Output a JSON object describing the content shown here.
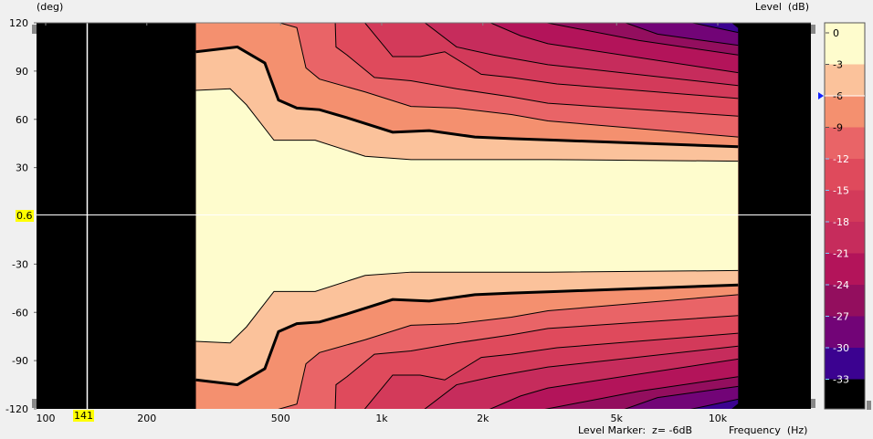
{
  "header": {
    "y_unit": "(deg)",
    "z_unit": "Level  (dB)"
  },
  "footer": {
    "level_marker": "Level Marker:  z= -6dB",
    "x_unit": "Frequency  (Hz)"
  },
  "markers": {
    "x_marker_label": "141",
    "x_marker_value": 141,
    "y_marker_label": "0.6",
    "y_marker_value": 0.6,
    "level_marker_db": -6
  },
  "chart_data": {
    "type": "heatmap",
    "subtype": "contour",
    "xlabel": "Frequency  (Hz)",
    "ylabel": "(deg)",
    "zlabel": "Level  (dB)",
    "x_scale": "log",
    "xlim": [
      92,
      19000
    ],
    "ylim": [
      -120,
      120
    ],
    "data_x_range": [
      280,
      11500
    ],
    "x_ticks": [
      {
        "v": 100,
        "label": "100"
      },
      {
        "v": 200,
        "label": "200"
      },
      {
        "v": 500,
        "label": "500"
      },
      {
        "v": 1000,
        "label": "1k"
      },
      {
        "v": 2000,
        "label": "2k"
      },
      {
        "v": 5000,
        "label": "5k"
      },
      {
        "v": 10000,
        "label": "10k"
      }
    ],
    "y_ticks": [
      {
        "v": 120,
        "label": "120"
      },
      {
        "v": 90,
        "label": "90"
      },
      {
        "v": 60,
        "label": "60"
      },
      {
        "v": 30,
        "label": "30"
      },
      {
        "v": -30,
        "label": "-30"
      },
      {
        "v": -60,
        "label": "-60"
      },
      {
        "v": -90,
        "label": "-90"
      },
      {
        "v": -120,
        "label": "-120"
      }
    ],
    "colorbar": [
      {
        "level": 0,
        "label": "0",
        "color": "#fefccd",
        "text": "#000000"
      },
      {
        "level": -3,
        "label": "-3",
        "color": "#fbc29b",
        "text": "#000000"
      },
      {
        "level": -6,
        "label": "-6",
        "color": "#f4906f",
        "text": "#000000"
      },
      {
        "level": -9,
        "label": "-9",
        "color": "#e96467",
        "text": "#000000"
      },
      {
        "level": -12,
        "label": "-12",
        "color": "#df4a5c",
        "text": "#ffffff"
      },
      {
        "level": -15,
        "label": "-15",
        "color": "#d33a5a",
        "text": "#ffffff"
      },
      {
        "level": -18,
        "label": "-18",
        "color": "#c62c5c",
        "text": "#ffffff"
      },
      {
        "level": -21,
        "label": "-21",
        "color": "#b3145a",
        "text": "#ffffff"
      },
      {
        "level": -24,
        "label": "-24",
        "color": "#930e5e",
        "text": "#ffffff"
      },
      {
        "level": -27,
        "label": "-27",
        "color": "#720477",
        "text": "#ffffff"
      },
      {
        "level": -30,
        "label": "-30",
        "color": "#3b0290",
        "text": "#ffffff"
      },
      {
        "level": -33,
        "label": "-33",
        "color": "#000000",
        "text": "#ffffff"
      }
    ],
    "contours": [
      {
        "level": -33,
        "points": [
          [
            10900,
            121
          ],
          [
            11500,
            117
          ]
        ]
      },
      {
        "level": -30,
        "points": [
          [
            7980,
            121
          ],
          [
            11500,
            114
          ]
        ]
      },
      {
        "level": -27,
        "points": [
          [
            5153,
            121
          ],
          [
            6620,
            113
          ],
          [
            11500,
            106
          ]
        ]
      },
      {
        "level": -24,
        "points": [
          [
            2931,
            121
          ],
          [
            5837,
            109
          ],
          [
            11500,
            100
          ]
        ]
      },
      {
        "level": -21,
        "points": [
          [
            2055,
            121
          ],
          [
            2588,
            112
          ],
          [
            3124,
            107
          ],
          [
            11500,
            89
          ]
        ]
      },
      {
        "level": -18,
        "points": [
          [
            1326,
            121
          ],
          [
            1670,
            105
          ],
          [
            2146,
            100
          ],
          [
            3124,
            94
          ],
          [
            11500,
            81
          ]
        ]
      },
      {
        "level": -15,
        "points": [
          [
            883,
            121
          ],
          [
            1078,
            99
          ],
          [
            1301,
            99
          ],
          [
            1540,
            102
          ],
          [
            1978,
            88
          ],
          [
            2432,
            86
          ],
          [
            3324,
            82
          ],
          [
            11500,
            73
          ]
        ]
      },
      {
        "level": -12,
        "points": [
          [
            727,
            121
          ],
          [
            731,
            105
          ],
          [
            788,
            100
          ],
          [
            951,
            86
          ],
          [
            1222,
            84
          ],
          [
            1670,
            79
          ],
          [
            2432,
            74
          ],
          [
            3124,
            70
          ],
          [
            11500,
            62
          ]
        ]
      },
      {
        "level": -9,
        "points": [
          [
            478,
            121
          ],
          [
            559,
            117
          ],
          [
            595,
            92
          ],
          [
            653,
            85
          ],
          [
            893,
            77
          ],
          [
            1222,
            68
          ],
          [
            1670,
            67
          ],
          [
            2432,
            63
          ],
          [
            3124,
            59
          ],
          [
            11500,
            49
          ]
        ]
      },
      {
        "level": -6,
        "points": [
          [
            280,
            102
          ],
          [
            372,
            105
          ],
          [
            449,
            95
          ],
          [
            493,
            72
          ],
          [
            559,
            67
          ],
          [
            653,
            66
          ],
          [
            788,
            61
          ],
          [
            1078,
            52
          ],
          [
            1385,
            53
          ],
          [
            1893,
            49
          ],
          [
            2432,
            48
          ],
          [
            3324,
            47
          ],
          [
            11500,
            43
          ]
        ]
      },
      {
        "level": -3,
        "points": [
          [
            280,
            78
          ],
          [
            354,
            79
          ],
          [
            396,
            69
          ],
          [
            478,
            47
          ],
          [
            634,
            47
          ],
          [
            893,
            37
          ],
          [
            1222,
            35
          ],
          [
            1670,
            35
          ],
          [
            3124,
            35
          ],
          [
            11500,
            34
          ]
        ]
      }
    ]
  }
}
